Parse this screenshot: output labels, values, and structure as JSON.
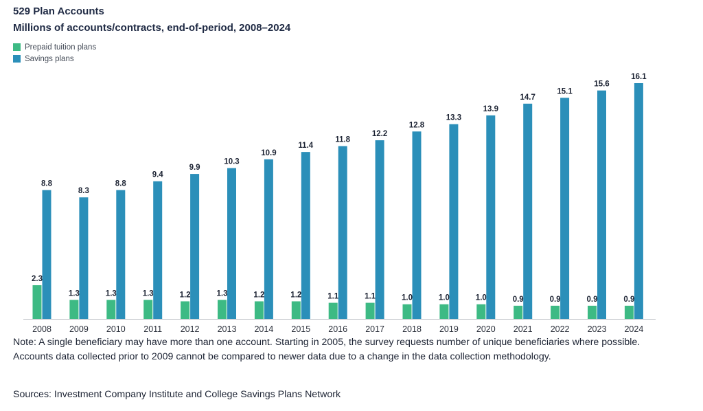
{
  "header": {
    "title": "529 Plan Accounts",
    "subtitle": "Millions of accounts/contracts, end-of-period, 2008–2024"
  },
  "legend": [
    {
      "label": "Prepaid tuition plans",
      "color": "#3dba84"
    },
    {
      "label": "Savings plans",
      "color": "#2b8fb9"
    }
  ],
  "chart_data": {
    "type": "bar",
    "title": "529 Plan Accounts",
    "subtitle": "Millions of accounts/contracts, end-of-period, 2008–2024",
    "xlabel": "",
    "ylabel": "",
    "ylim": [
      0,
      16.1
    ],
    "grid": false,
    "legend_position": "top-left",
    "categories": [
      "2008",
      "2009",
      "2010",
      "2011",
      "2012",
      "2013",
      "2014",
      "2015",
      "2016",
      "2017",
      "2018",
      "2019",
      "2020",
      "2021",
      "2022",
      "2023",
      "2024"
    ],
    "series": [
      {
        "name": "Prepaid tuition plans",
        "color": "#3dba84",
        "values": [
          2.3,
          1.3,
          1.3,
          1.3,
          1.2,
          1.3,
          1.2,
          1.2,
          1.1,
          1.1,
          1.0,
          1.0,
          1.0,
          0.9,
          0.9,
          0.9,
          0.9
        ],
        "labels": [
          "2.3",
          "1.3",
          "1.3",
          "1.3",
          "1.2",
          "1.3",
          "1.2",
          "1.2",
          "1.1",
          "1.1",
          "1.0",
          "1.0",
          "1.0",
          "0.9",
          "0.9",
          "0.9",
          "0.9"
        ]
      },
      {
        "name": "Savings plans",
        "color": "#2b8fb9",
        "values": [
          8.8,
          8.3,
          8.8,
          9.4,
          9.9,
          10.3,
          10.9,
          11.4,
          11.8,
          12.2,
          12.8,
          13.3,
          13.9,
          14.7,
          15.1,
          15.6,
          16.1
        ],
        "labels": [
          "8.8",
          "8.3",
          "8.8",
          "9.4",
          "9.9",
          "10.3",
          "10.9",
          "11.4",
          "11.8",
          "12.2",
          "12.8",
          "13.3",
          "13.9",
          "14.7",
          "15.1",
          "15.6",
          "16.1"
        ]
      }
    ]
  },
  "footer": {
    "note": "Note: A single beneficiary may have more than one account. Starting in 2005, the survey requests number of unique beneficiaries where possible. Accounts data collected prior to 2009 cannot be compared to newer data due to a change in the data collection methodology.",
    "sources": "Sources: Investment Company Institute and College Savings Plans Network"
  }
}
